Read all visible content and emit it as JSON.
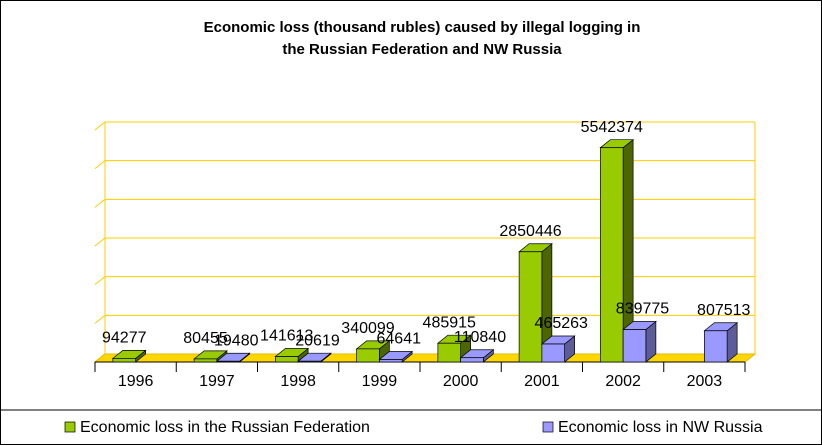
{
  "chart_data": {
    "type": "bar3d",
    "title": "Economic loss (thousand rubles) caused by illegal logging in",
    "subtitle": "the Russian Federation and NW Russia",
    "categories": [
      "1996",
      "1997",
      "1998",
      "1999",
      "2000",
      "2001",
      "2002",
      "2003"
    ],
    "series": [
      {
        "name": "Economic loss in the Russian Federation",
        "color": "#99cc00",
        "side_color": "#4d6600",
        "values": [
          94277,
          80455,
          141613,
          340099,
          485915,
          2850446,
          5542374,
          null
        ]
      },
      {
        "name": "Economic loss in NW Russia",
        "color": "#9999ff",
        "side_color": "#5c5c99",
        "values": [
          null,
          19480,
          20619,
          64641,
          110840,
          465263,
          839775,
          807513
        ]
      }
    ],
    "ylim": [
      0,
      6000000
    ],
    "yticks": [
      0,
      1000000,
      2000000,
      3000000,
      4000000,
      5000000,
      6000000
    ],
    "grid": true,
    "legend": "bottom"
  }
}
